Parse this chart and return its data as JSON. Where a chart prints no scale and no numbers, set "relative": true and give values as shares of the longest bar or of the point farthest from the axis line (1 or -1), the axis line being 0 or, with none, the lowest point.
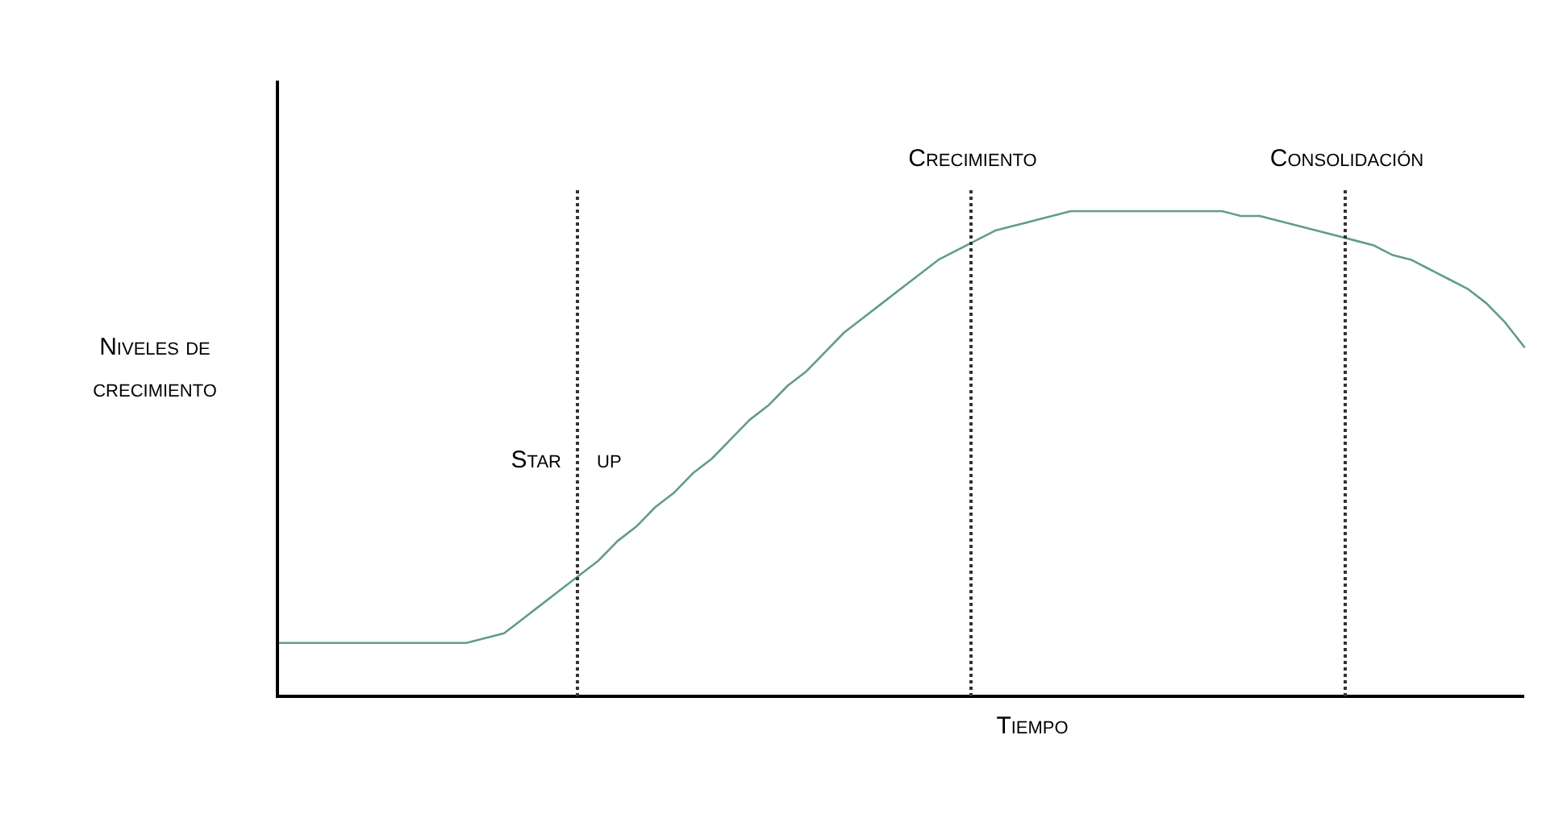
{
  "chart_data": {
    "type": "line",
    "relative": true,
    "xlabel": "Tiempo",
    "ylabel": "Niveles de crecimiento",
    "legend": false,
    "marker": "none",
    "line_style": "solid",
    "categories": [
      null,
      null,
      null,
      null,
      null,
      null,
      null,
      null,
      null,
      null,
      null,
      null,
      null,
      null,
      null,
      null,
      null,
      null,
      null,
      null,
      null,
      null,
      null,
      null,
      null,
      null,
      null,
      null,
      null,
      null,
      null,
      null,
      null,
      null,
      null,
      null,
      null,
      null,
      null,
      null,
      null,
      null,
      null,
      null,
      null,
      null,
      null,
      null,
      null,
      null,
      null,
      null,
      null,
      null,
      null,
      null,
      null,
      null,
      null,
      null,
      null,
      null,
      null,
      null,
      null,
      null,
      null
    ],
    "series": [
      {
        "color": "#5f9e88",
        "values": [
          0.11,
          0.11,
          0.11,
          0.11,
          0.11,
          0.11,
          0.11,
          0.11,
          0.11,
          0.11,
          0.11,
          0.12,
          0.13,
          0.16,
          0.19,
          0.22,
          0.25,
          0.28,
          0.32,
          0.35,
          0.39,
          0.42,
          0.46,
          0.49,
          0.53,
          0.57,
          0.6,
          0.64,
          0.67,
          0.71,
          0.75,
          0.78,
          0.81,
          0.84,
          0.87,
          0.9,
          0.92,
          0.94,
          0.96,
          0.97,
          0.98,
          0.99,
          1,
          1,
          1,
          1,
          1,
          1,
          1,
          1,
          1,
          0.99,
          0.99,
          0.98,
          0.97,
          0.96,
          0.95,
          0.94,
          0.93,
          0.91,
          0.9,
          0.88,
          0.86,
          0.84,
          0.81,
          0.77,
          0.72
        ]
      }
    ],
    "annotations": [
      "Star up",
      "Crecimiento",
      "Consolidación"
    ]
  }
}
